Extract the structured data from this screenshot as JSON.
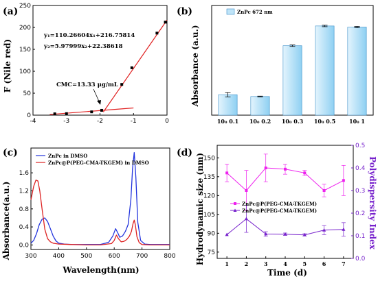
{
  "chart_data": [
    {
      "panel": "(a)",
      "type": "line",
      "ylabel": "F (Nile red)",
      "xlim": [
        -4,
        0
      ],
      "ylim": [
        0,
        250
      ],
      "xticks": [
        -4,
        -3,
        -2,
        -1,
        0
      ],
      "yticks": [
        0,
        50,
        100,
        150,
        200,
        250
      ],
      "points": [
        {
          "x": -3.35,
          "y": 3
        },
        {
          "x": -3.0,
          "y": 3.5
        },
        {
          "x": -2.25,
          "y": 7.5
        },
        {
          "x": -1.95,
          "y": 11
        },
        {
          "x": -1.35,
          "y": 70
        },
        {
          "x": -1.05,
          "y": 108
        },
        {
          "x": -0.3,
          "y": 187
        },
        {
          "x": -0.05,
          "y": 212
        }
      ],
      "fits": [
        {
          "slope": 110.26604,
          "intercept": 216.75814,
          "from": -1.9,
          "to": 0.0
        },
        {
          "slope": 5.97999,
          "intercept": 22.38618,
          "from": -3.5,
          "to": -1.0
        }
      ],
      "equations": [
        "y₁=110.26604x₁+216.75814",
        "y₂=5.97999x₂+22.38618"
      ],
      "annotation": "CMC=13.33 μg/mL"
    },
    {
      "panel": "(b)",
      "type": "bar",
      "ylabel": "Absorbance  (a.u.)",
      "legend": "ZnPc 672 nm",
      "categories": [
        "10₀ 0.1",
        "10₀ 0.2",
        "10₀ 0.3",
        "10₀ 0.5",
        "10₀ 1"
      ],
      "values": [
        0.56,
        0.51,
        1.9,
        2.44,
        2.41
      ],
      "errors": [
        0.06,
        0.01,
        0.02,
        0.02,
        0.02
      ],
      "ylim": [
        0,
        3.0
      ]
    },
    {
      "panel": "(c)",
      "type": "line",
      "xlabel": "Wavelength(nm)",
      "ylabel": "Absorbance(a.u.)",
      "xlim": [
        300,
        800
      ],
      "ylim": [
        -0.1,
        2.15
      ],
      "xticks": [
        300,
        400,
        500,
        600,
        700,
        800
      ],
      "yticks": [
        0.0,
        0.4,
        0.8,
        1.2,
        1.6
      ],
      "series": [
        {
          "name": "ZnPc in DMSO",
          "color": "#2233dd",
          "x": [
            300,
            310,
            320,
            330,
            340,
            350,
            360,
            370,
            380,
            390,
            400,
            420,
            450,
            500,
            550,
            580,
            595,
            605,
            612,
            620,
            630,
            640,
            650,
            660,
            666,
            672,
            678,
            685,
            695,
            710,
            730,
            800
          ],
          "y": [
            0.04,
            0.1,
            0.25,
            0.45,
            0.57,
            0.6,
            0.52,
            0.36,
            0.2,
            0.09,
            0.04,
            0.02,
            0.01,
            0.01,
            0.01,
            0.06,
            0.2,
            0.36,
            0.28,
            0.17,
            0.2,
            0.3,
            0.45,
            1.0,
            1.7,
            2.05,
            1.5,
            0.5,
            0.1,
            0.02,
            0.01,
            0.01
          ]
        },
        {
          "name": "ZnPc@P(PEG-CMA-TKGEM) in DMSO",
          "color": "#dd2222",
          "x": [
            300,
            310,
            318,
            325,
            332,
            340,
            350,
            360,
            370,
            380,
            400,
            450,
            500,
            550,
            590,
            600,
            608,
            615,
            625,
            635,
            645,
            655,
            662,
            668,
            672,
            676,
            682,
            690,
            700,
            730,
            800
          ],
          "y": [
            1.0,
            1.3,
            1.44,
            1.42,
            1.2,
            0.8,
            0.35,
            0.14,
            0.07,
            0.04,
            0.02,
            0.01,
            0.0,
            0.0,
            0.03,
            0.1,
            0.22,
            0.14,
            0.07,
            0.08,
            0.12,
            0.2,
            0.3,
            0.48,
            0.55,
            0.45,
            0.18,
            0.05,
            0.01,
            0.0,
            0.0
          ]
        }
      ]
    },
    {
      "panel": "(d)",
      "type": "line",
      "xlabel": "Time  (d)",
      "ylabel": "Hydrodynamic size (nm)",
      "y2label": "Polydispersity Index",
      "xlim": [
        0.5,
        7.5
      ],
      "ylim": [
        70,
        160
      ],
      "y2lim": [
        0,
        0.5
      ],
      "xticks": [
        1,
        2,
        3,
        4,
        5,
        6,
        7
      ],
      "yticks": [
        75,
        90,
        105,
        120,
        135,
        150
      ],
      "y2ticks": [
        0.0,
        0.1,
        0.2,
        0.3,
        0.4,
        0.5
      ],
      "series": [
        {
          "name": "ZnPc@P(PEG-CMA-TKGEM)",
          "axis": "left",
          "color": "#ee22ee",
          "marker": "square",
          "x": [
            1,
            2,
            3,
            4,
            5,
            6,
            7
          ],
          "y": [
            138,
            124,
            142,
            141,
            138,
            124,
            132
          ],
          "err": [
            7,
            16,
            11,
            4,
            2,
            5,
            12
          ]
        },
        {
          "name": "ZnPc@P(PEG-CMA-TKGEM)",
          "axis": "right",
          "color": "#7722cc",
          "marker": "triangle",
          "x": [
            1,
            2,
            3,
            4,
            5,
            6,
            7
          ],
          "y": [
            0.105,
            0.175,
            0.108,
            0.107,
            0.104,
            0.125,
            0.128
          ],
          "err": [
            0.0,
            0.06,
            0.01,
            0.005,
            0.005,
            0.02,
            0.03
          ]
        }
      ]
    }
  ]
}
